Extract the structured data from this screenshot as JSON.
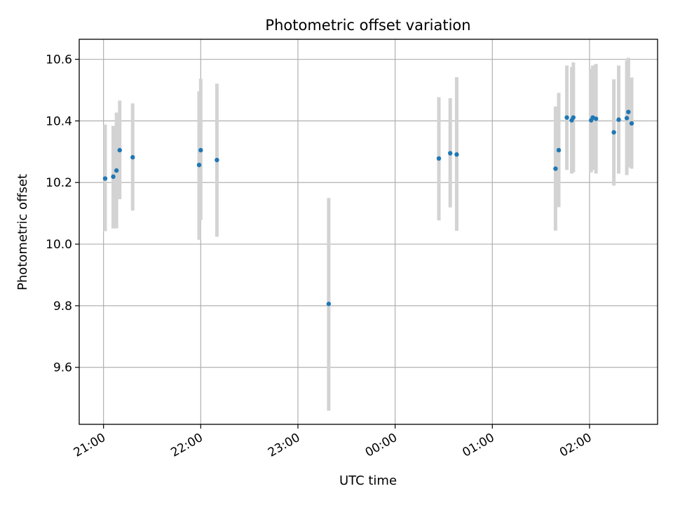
{
  "chart_data": {
    "type": "scatter",
    "title": "Photometric offset variation",
    "xlabel": "UTC time",
    "ylabel": "Photometric offset",
    "x_ticks": [
      "21:00",
      "22:00",
      "23:00",
      "00:00",
      "01:00",
      "02:00"
    ],
    "y_ticks": [
      "9.6",
      "9.8",
      "10.0",
      "10.2",
      "10.4",
      "10.6"
    ],
    "xlim": [
      "20:45",
      "02:42"
    ],
    "ylim": [
      9.415,
      10.665
    ],
    "grid": true,
    "colors": {
      "points": "#1f77b4",
      "error_bars": "#d3d3d3",
      "grid": "#b0b0b0"
    },
    "points": [
      {
        "t": "21:01",
        "y": 10.213,
        "lo": 10.042,
        "hi": 10.388
      },
      {
        "t": "21:06",
        "y": 10.219,
        "lo": 10.051,
        "hi": 10.384
      },
      {
        "t": "21:08",
        "y": 10.239,
        "lo": 10.051,
        "hi": 10.427
      },
      {
        "t": "21:10",
        "y": 10.305,
        "lo": 10.146,
        "hi": 10.466
      },
      {
        "t": "21:18",
        "y": 10.282,
        "lo": 10.109,
        "hi": 10.457
      },
      {
        "t": "21:59",
        "y": 10.257,
        "lo": 10.014,
        "hi": 10.496
      },
      {
        "t": "22:00",
        "y": 10.305,
        "lo": 10.078,
        "hi": 10.537
      },
      {
        "t": "22:10",
        "y": 10.273,
        "lo": 10.024,
        "hi": 10.521
      },
      {
        "t": "23:19",
        "y": 9.806,
        "lo": 9.459,
        "hi": 10.15
      },
      {
        "t": "00:27",
        "y": 10.278,
        "lo": 10.077,
        "hi": 10.477
      },
      {
        "t": "00:34",
        "y": 10.295,
        "lo": 10.119,
        "hi": 10.474
      },
      {
        "t": "00:38",
        "y": 10.291,
        "lo": 10.043,
        "hi": 10.542
      },
      {
        "t": "01:39",
        "y": 10.245,
        "lo": 10.044,
        "hi": 10.447
      },
      {
        "t": "01:41",
        "y": 10.305,
        "lo": 10.12,
        "hi": 10.491
      },
      {
        "t": "01:46",
        "y": 10.411,
        "lo": 10.241,
        "hi": 10.58
      },
      {
        "t": "01:49",
        "y": 10.402,
        "lo": 10.229,
        "hi": 10.575
      },
      {
        "t": "01:50",
        "y": 10.411,
        "lo": 10.233,
        "hi": 10.59
      },
      {
        "t": "02:01",
        "y": 10.402,
        "lo": 10.233,
        "hi": 10.569
      },
      {
        "t": "02:02",
        "y": 10.411,
        "lo": 10.241,
        "hi": 10.58
      },
      {
        "t": "02:04",
        "y": 10.407,
        "lo": 10.229,
        "hi": 10.585
      },
      {
        "t": "02:15",
        "y": 10.363,
        "lo": 10.19,
        "hi": 10.535
      },
      {
        "t": "02:18",
        "y": 10.404,
        "lo": 10.229,
        "hi": 10.58
      },
      {
        "t": "02:23",
        "y": 10.409,
        "lo": 10.224,
        "hi": 10.596
      },
      {
        "t": "02:24",
        "y": 10.429,
        "lo": 10.249,
        "hi": 10.605
      },
      {
        "t": "02:26",
        "y": 10.392,
        "lo": 10.245,
        "hi": 10.541
      }
    ]
  }
}
